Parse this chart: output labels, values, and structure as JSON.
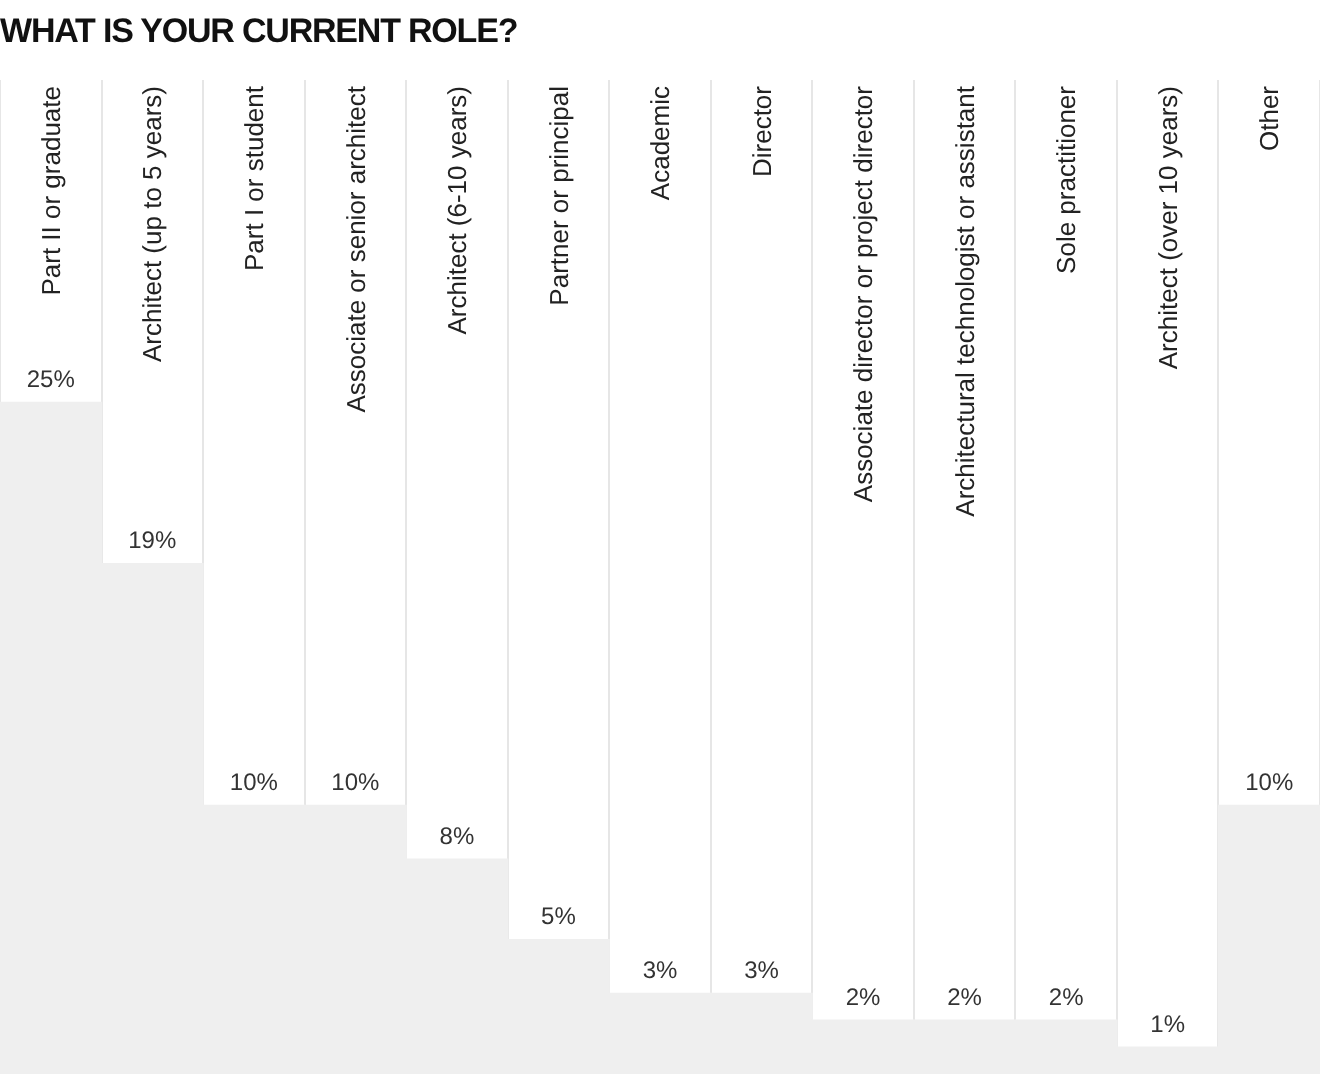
{
  "chart_data": {
    "type": "bar",
    "title": "WHAT IS YOUR CURRENT ROLE?",
    "categories": [
      "Part II or graduate",
      "Architect (up to 5 years)",
      "Part I or student",
      "Associate or senior architect",
      "Architect (6-10 years)",
      "Partner or principal",
      "Academic",
      "Director",
      "Associate director or project director",
      "Architectural technologist or assistant",
      "Sole practitioner",
      "Architect (over 10 years)",
      "Other"
    ],
    "values": [
      25,
      19,
      10,
      10,
      8,
      5,
      3,
      3,
      2,
      2,
      2,
      1,
      10
    ],
    "value_labels": [
      "25%",
      "19%",
      "10%",
      "10%",
      "8%",
      "5%",
      "3%",
      "3%",
      "2%",
      "2%",
      "2%",
      "1%",
      "10%"
    ],
    "color": "#efefef",
    "ylim": [
      0,
      37
    ],
    "grid": "x",
    "tick_labels": "x"
  }
}
